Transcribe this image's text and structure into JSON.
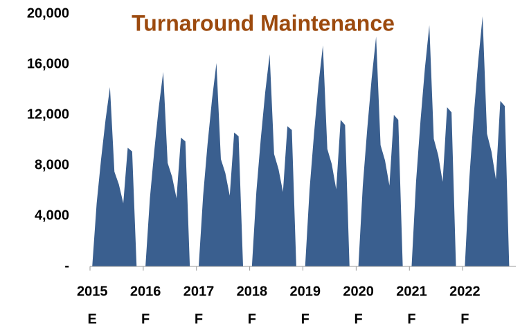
{
  "chart_data": {
    "type": "area",
    "title": "Turnaround Maintenance",
    "title_color": "#9c4a0e",
    "color": "#3a5f8f",
    "categories": [
      "2015",
      null,
      null,
      null,
      null,
      null,
      null,
      null,
      null,
      null,
      null,
      null,
      "2016",
      null,
      null,
      null,
      null,
      null,
      null,
      null,
      null,
      null,
      null,
      null,
      "2017",
      null,
      null,
      null,
      null,
      null,
      null,
      null,
      null,
      null,
      null,
      null,
      "2018",
      null,
      null,
      null,
      null,
      null,
      null,
      null,
      null,
      null,
      null,
      null,
      "2019",
      null,
      null,
      null,
      null,
      null,
      null,
      null,
      null,
      null,
      null,
      null,
      "2020",
      null,
      null,
      null,
      null,
      null,
      null,
      null,
      null,
      null,
      null,
      null,
      "2021",
      null,
      null,
      null,
      null,
      null,
      null,
      null,
      null,
      null,
      null,
      null,
      "2022",
      null,
      null,
      null,
      null,
      null,
      null,
      null,
      null,
      null,
      null,
      null
    ],
    "category_notes": [
      "E",
      null,
      null,
      null,
      null,
      null,
      null,
      null,
      null,
      null,
      null,
      null,
      "F",
      null,
      null,
      null,
      null,
      null,
      null,
      null,
      null,
      null,
      null,
      null,
      "F",
      null,
      null,
      null,
      null,
      null,
      null,
      null,
      null,
      null,
      null,
      null,
      "F",
      null,
      null,
      null,
      null,
      null,
      null,
      null,
      null,
      null,
      null,
      null,
      "F",
      null,
      null,
      null,
      null,
      null,
      null,
      null,
      null,
      null,
      null,
      null,
      "F",
      null,
      null,
      null,
      null,
      null,
      null,
      null,
      null,
      null,
      null,
      null,
      "F",
      null,
      null,
      null,
      null,
      null,
      null,
      null,
      null,
      null,
      null,
      null,
      "F",
      null,
      null,
      null,
      null,
      null,
      null,
      null,
      null,
      null,
      null,
      null
    ],
    "values": [
      0,
      5000,
      8500,
      11600,
      14200,
      7500,
      6500,
      5000,
      9400,
      9100,
      0,
      0,
      0,
      5400,
      9200,
      12600,
      15400,
      8200,
      7100,
      5400,
      10200,
      9900,
      0,
      0,
      0,
      5600,
      9700,
      13200,
      16100,
      8500,
      7400,
      5600,
      10600,
      10300,
      0,
      0,
      0,
      5900,
      10100,
      13800,
      16800,
      8900,
      7700,
      5900,
      11100,
      10800,
      0,
      0,
      0,
      6100,
      10500,
      14400,
      17500,
      9300,
      8100,
      6100,
      11600,
      11200,
      0,
      0,
      0,
      6400,
      10900,
      14900,
      18200,
      9600,
      8400,
      6400,
      12000,
      11600,
      0,
      0,
      0,
      6700,
      11500,
      15700,
      19100,
      10100,
      8800,
      6700,
      12600,
      12200,
      0,
      0,
      0,
      6900,
      11900,
      16200,
      19800,
      10500,
      9100,
      6900,
      13100,
      12700,
      0,
      0
    ],
    "ylim": [
      0,
      20000
    ],
    "yticks": [
      {
        "value": 0,
        "label": "-"
      },
      {
        "value": 4000,
        "label": "4,000"
      },
      {
        "value": 8000,
        "label": "8,000"
      },
      {
        "value": 12000,
        "label": "12,000"
      },
      {
        "value": 16000,
        "label": "16,000"
      },
      {
        "value": 20000,
        "label": "20,000"
      }
    ]
  }
}
